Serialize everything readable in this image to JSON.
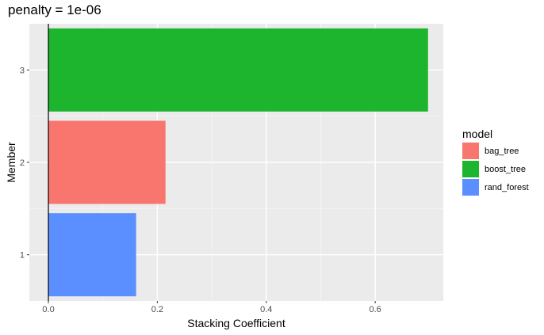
{
  "chart_data": {
    "type": "bar",
    "orientation": "horizontal",
    "title": "penalty = 1e-06",
    "xlabel": "Stacking Coefficient",
    "ylabel": "Member",
    "xlim": [
      -0.035,
      0.725
    ],
    "x_ticks": [
      "0.0",
      "0.2",
      "0.4",
      "0.6"
    ],
    "x_tick_values": [
      0.0,
      0.2,
      0.4,
      0.6
    ],
    "categories": [
      "1",
      "2",
      "3"
    ],
    "bars": [
      {
        "member": "1",
        "value": 0.161,
        "model": "rand_forest"
      },
      {
        "member": "2",
        "value": 0.215,
        "model": "bag_tree"
      },
      {
        "member": "3",
        "value": 0.697,
        "model": "boost_tree"
      }
    ],
    "legend": {
      "title": "model",
      "position": "right",
      "entries": [
        {
          "label": "bag_tree",
          "color": "#F8766D"
        },
        {
          "label": "boost_tree",
          "color": "#1DB42E"
        },
        {
          "label": "rand_forest",
          "color": "#5B8EFF"
        }
      ]
    },
    "vline_x": 0,
    "grid": true,
    "panel_background": "#EBEBEB"
  }
}
